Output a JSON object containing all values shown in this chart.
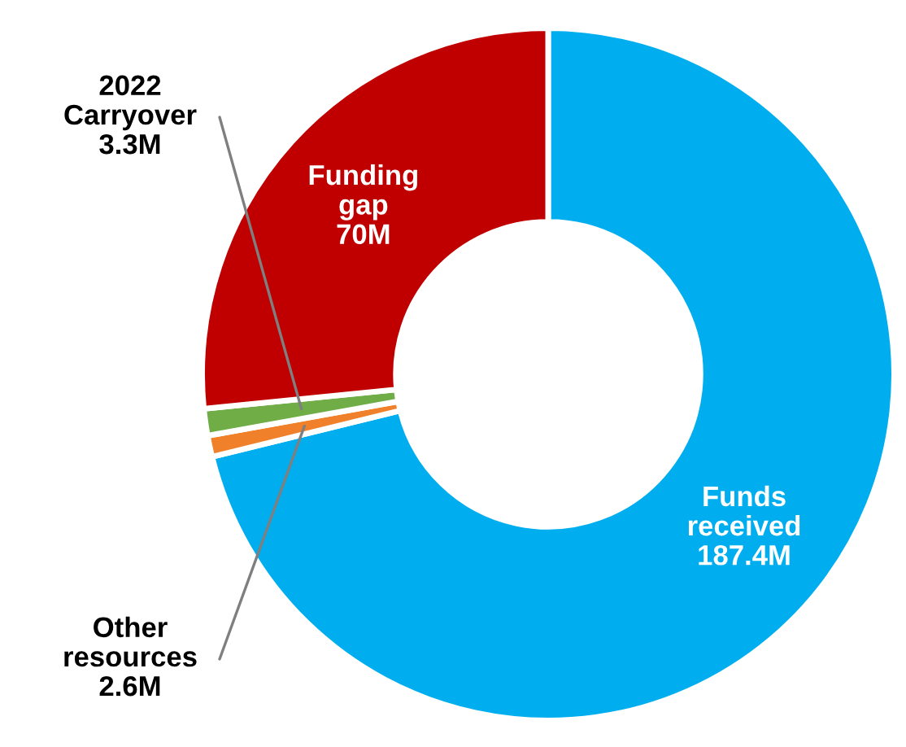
{
  "chart_data": {
    "type": "donut",
    "categories": [
      "Funds\nreceived",
      "Other\nresources",
      "2022\nCarryover",
      "Funding\ngap"
    ],
    "values": [
      187.4,
      2.6,
      3.3,
      70
    ],
    "value_labels": [
      "187.4M",
      "2.6M",
      "3.3M",
      "70M"
    ],
    "colors": [
      "#00aeef",
      "#f0812a",
      "#70ad47",
      "#c00000"
    ],
    "legend": false
  }
}
